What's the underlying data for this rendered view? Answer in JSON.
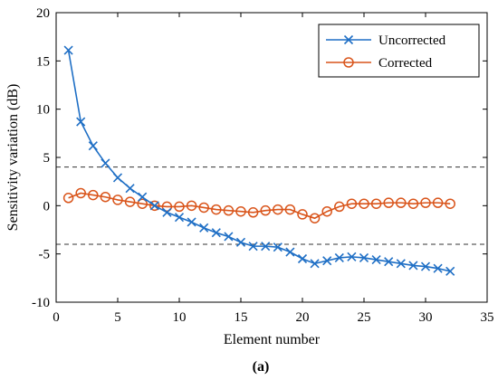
{
  "caption": "(a)",
  "chart_data": {
    "type": "line",
    "title": "",
    "xlabel": "Element number",
    "ylabel": "Sensitivity variation (dB)",
    "xlim": [
      0,
      35
    ],
    "ylim": [
      -10,
      20
    ],
    "xticks": [
      0,
      5,
      10,
      15,
      20,
      25,
      30,
      35
    ],
    "yticks": [
      -10,
      -5,
      0,
      5,
      10,
      15,
      20
    ],
    "grid": false,
    "legend_position": "top-right",
    "reference_lines": [
      {
        "y": 4,
        "style": "dashed",
        "color": "#333333"
      },
      {
        "y": -4,
        "style": "dashed",
        "color": "#333333"
      }
    ],
    "x": [
      1,
      2,
      3,
      4,
      5,
      6,
      7,
      8,
      9,
      10,
      11,
      12,
      13,
      14,
      15,
      16,
      17,
      18,
      19,
      20,
      21,
      22,
      23,
      24,
      25,
      26,
      27,
      28,
      29,
      30,
      31,
      32
    ],
    "series": [
      {
        "name": "Uncorrected",
        "marker": "x",
        "color": "#1f6fc5",
        "values": [
          16.1,
          8.7,
          6.2,
          4.4,
          2.9,
          1.8,
          0.9,
          0.0,
          -0.7,
          -1.2,
          -1.7,
          -2.3,
          -2.8,
          -3.2,
          -3.8,
          -4.2,
          -4.2,
          -4.3,
          -4.8,
          -5.5,
          -6.0,
          -5.7,
          -5.4,
          -5.3,
          -5.4,
          -5.6,
          -5.8,
          -6.0,
          -6.2,
          -6.3,
          -6.5,
          -6.8
        ]
      },
      {
        "name": "Corrected",
        "marker": "o",
        "color": "#d9541a",
        "values": [
          0.8,
          1.3,
          1.1,
          0.9,
          0.6,
          0.4,
          0.2,
          0.0,
          -0.1,
          -0.1,
          0.0,
          -0.2,
          -0.4,
          -0.5,
          -0.6,
          -0.7,
          -0.5,
          -0.4,
          -0.4,
          -0.9,
          -1.3,
          -0.6,
          -0.1,
          0.2,
          0.2,
          0.2,
          0.3,
          0.3,
          0.2,
          0.3,
          0.3,
          0.2
        ]
      }
    ]
  }
}
